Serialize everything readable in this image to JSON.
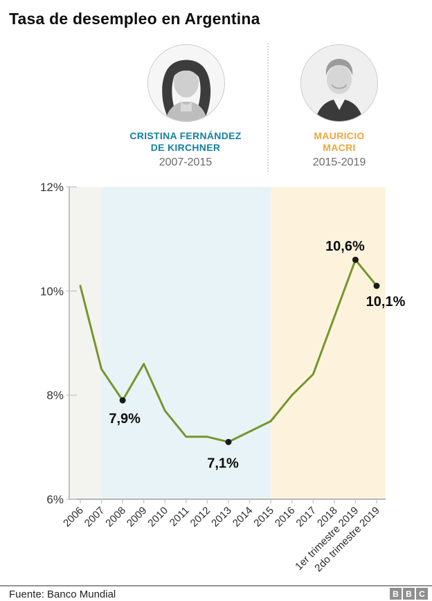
{
  "title": "Tasa de desempleo en Argentina",
  "presidents": [
    {
      "name_line1": "CRISTINA FERNÁNDEZ",
      "name_line2": "DE KIRCHNER",
      "years": "2007-2015",
      "color": "#1380A1"
    },
    {
      "name_line1": "MAURICIO",
      "name_line2": "MACRI",
      "years": "2015-2019",
      "color": "#F2A63E"
    }
  ],
  "chart_data": {
    "type": "line",
    "x": [
      "2006",
      "2007",
      "2008",
      "2009",
      "2010",
      "2011",
      "2012",
      "2013",
      "2014",
      "2015",
      "2016",
      "2017",
      "2018",
      "1er trimestre 2019",
      "2do trimestre 2019"
    ],
    "values": [
      10.1,
      8.5,
      7.9,
      8.6,
      7.7,
      7.2,
      7.2,
      7.1,
      7.3,
      7.5,
      8.0,
      8.4,
      9.5,
      10.6,
      10.1
    ],
    "ylim": [
      6,
      12
    ],
    "yticks": [
      {
        "value": 12,
        "label": "12%"
      },
      {
        "value": 10,
        "label": "10%"
      },
      {
        "value": 8,
        "label": "8%"
      },
      {
        "value": 6,
        "label": "6%"
      }
    ],
    "grid": false,
    "legend": "none",
    "line_color": "#74962c",
    "point_color": "#1a1a1a",
    "bands": [
      {
        "from": "plot_start",
        "to": "2007",
        "color": "#f3f3f0"
      },
      {
        "from": "2007",
        "to": "2015",
        "color": "#e8f3f7"
      },
      {
        "from": "2015",
        "to": "plot_end",
        "color": "#fdf3dd"
      }
    ],
    "annotations": [
      {
        "x": "2008",
        "value": 7.9,
        "label": "7,9%",
        "placement": "below"
      },
      {
        "x": "2013",
        "value": 7.1,
        "label": "7,1%",
        "placement": "below-left"
      },
      {
        "x": "1er trimestre 2019",
        "value": 10.6,
        "label": "10,6%",
        "placement": "above-left"
      },
      {
        "x": "2do trimestre 2019",
        "value": 10.1,
        "label": "10,1%",
        "placement": "below-right"
      }
    ]
  },
  "footer": {
    "source": "Fuente: Banco Mundial",
    "logo_letters": [
      "B",
      "B",
      "C"
    ]
  }
}
